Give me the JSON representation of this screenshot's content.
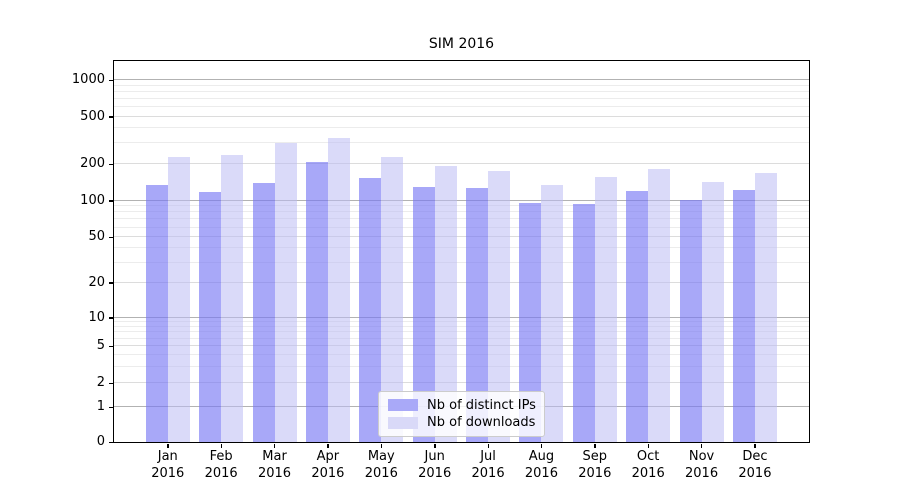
{
  "title": "SIM 2016",
  "chart_data": {
    "type": "bar",
    "title": "SIM 2016",
    "categories": [
      "Jan",
      "Feb",
      "Mar",
      "Apr",
      "May",
      "Jun",
      "Jul",
      "Aug",
      "Sep",
      "Oct",
      "Nov",
      "Dec"
    ],
    "category_year": "2016",
    "series": [
      {
        "name": "Nb of distinct IPs",
        "color": "#a9a9f8",
        "values": [
          135,
          118,
          140,
          210,
          155,
          130,
          127,
          96,
          94,
          120,
          101,
          122
        ]
      },
      {
        "name": "Nb of downloads",
        "color": "#d9d9f8",
        "values": [
          230,
          240,
          300,
          335,
          230,
          193,
          177,
          136,
          158,
          182,
          143,
          170
        ]
      }
    ],
    "xlabel": "",
    "ylabel": "",
    "yscale": "symlog",
    "yticks": [
      0,
      1,
      2,
      5,
      10,
      20,
      50,
      100,
      200,
      500,
      1000
    ],
    "ylim": [
      0,
      1500
    ],
    "grid": true,
    "legend_position": "lower center"
  },
  "legend": {
    "items": [
      {
        "label": "Nb of distinct IPs",
        "color": "#a9a9f8"
      },
      {
        "label": "Nb of downloads",
        "color": "#d9d9f8"
      }
    ]
  }
}
